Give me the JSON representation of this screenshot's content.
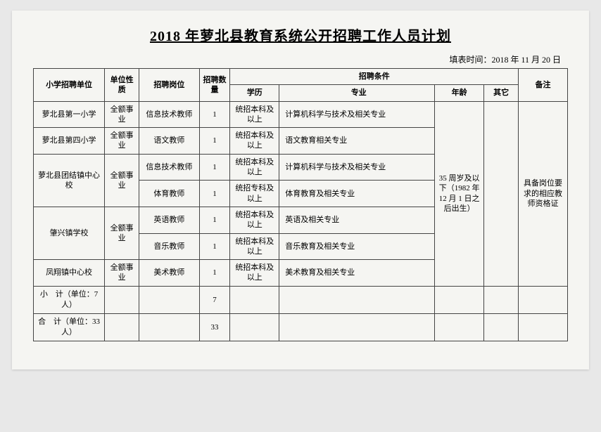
{
  "title": "2018 年萝北县教育系统公开招聘工作人员计划",
  "fill_date_label": "填表时间：2018 年 11 月 20 日",
  "headers": {
    "unit": "小学招聘单位",
    "nature": "单位性质",
    "position": "招聘岗位",
    "count": "招聘数量",
    "conditions": "招聘条件",
    "edu": "学历",
    "major": "专业",
    "age": "年龄",
    "other": "其它",
    "remark": "备注"
  },
  "rows": [
    {
      "unit": "萝北县第一小学",
      "nature": "全额事业",
      "position": "信息技术教师",
      "count": "1",
      "edu": "统招本科及以上",
      "major": "计算机科学与技术及相关专业"
    },
    {
      "unit": "萝北县第四小学",
      "nature": "全额事业",
      "position": "语文教师",
      "count": "1",
      "edu": "统招本科及以上",
      "major": "语文教育相关专业"
    },
    {
      "unit": "萝北县团结镇中心校",
      "nature": "全额事业",
      "position": "信息技术教师",
      "count": "1",
      "edu": "统招本科及以上",
      "major": "计算机科学与技术及相关专业"
    },
    {
      "unit": "",
      "nature": "",
      "position": "体育教师",
      "count": "1",
      "edu": "统招专科及以上",
      "major": "体育教育及相关专业"
    },
    {
      "unit": "肇兴镇学校",
      "nature": "全额事业",
      "position": "英语教师",
      "count": "1",
      "edu": "统招本科及以上",
      "major": "英语及相关专业"
    },
    {
      "unit": "",
      "nature": "",
      "position": "音乐教师",
      "count": "1",
      "edu": "统招本科及以上",
      "major": "音乐教育及相关专业"
    },
    {
      "unit": "凤翔镇中心校",
      "nature": "全额事业",
      "position": "美术教师",
      "count": "1",
      "edu": "统招本科及以上",
      "major": "美术教育及相关专业"
    }
  ],
  "age_text": "35 周岁及以下（1982 年12 月 1 日之后出生）",
  "remark_text": "具备岗位要求的相应教师资格证",
  "subtotal": {
    "label": "小　计（单位：7 人）",
    "count": "7"
  },
  "total": {
    "label": "合　计（单位：33 人）",
    "count": "33"
  },
  "style": {
    "page_bg": "#f5f5f2",
    "body_bg": "#e8e8e8",
    "border_color": "#444",
    "title_fontsize": 20,
    "cell_fontsize": 11
  }
}
